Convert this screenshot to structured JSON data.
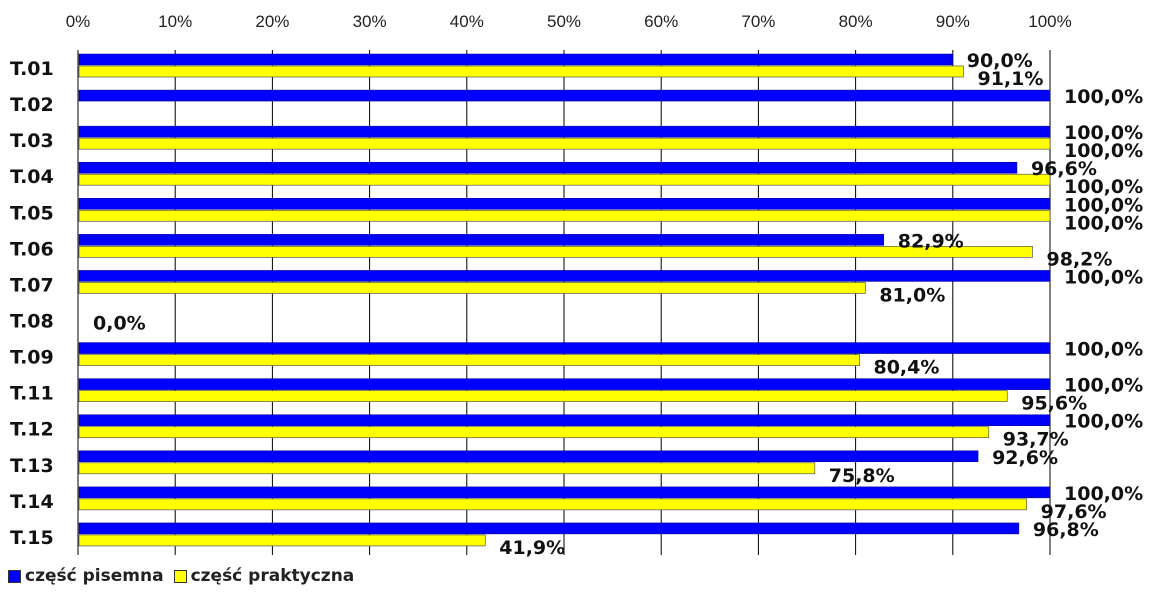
{
  "chart_data": {
    "type": "bar",
    "orientation": "horizontal",
    "categories": [
      "T.01",
      "T.02",
      "T.03",
      "T.04",
      "T.05",
      "T.06",
      "T.07",
      "T.08",
      "T.09",
      "T.11",
      "T.12",
      "T.13",
      "T.14",
      "T.15"
    ],
    "series": [
      {
        "name": "część pisemna",
        "color": "#0000ff",
        "values": [
          90.0,
          100.0,
          100.0,
          96.6,
          100.0,
          82.9,
          100.0,
          0.0,
          100.0,
          100.0,
          100.0,
          92.6,
          100.0,
          96.8
        ],
        "labels": [
          "90,0%",
          "100,0%",
          "100,0%",
          "96,6%",
          "100,0%",
          "82,9%",
          "100,0%",
          "0,0%",
          "100,0%",
          "100,0%",
          "100,0%",
          "92,6%",
          "100,0%",
          "96,8%"
        ]
      },
      {
        "name": "część praktyczna",
        "color": "#ffff00",
        "values": [
          91.1,
          null,
          100.0,
          100.0,
          100.0,
          98.2,
          81.0,
          null,
          80.4,
          95.6,
          93.7,
          75.8,
          97.6,
          41.9
        ],
        "labels": [
          "91,1%",
          "",
          "100,0%",
          "100,0%",
          "100,0%",
          "98,2%",
          "81,0%",
          "",
          "80,4%",
          "95,6%",
          "93,7%",
          "75,8%",
          "97,6%",
          "41,9%"
        ]
      }
    ],
    "xlim": [
      0,
      100
    ],
    "x_ticks": [
      "0%",
      "10%",
      "20%",
      "30%",
      "40%",
      "50%",
      "60%",
      "70%",
      "80%",
      "90%",
      "100%"
    ],
    "x_axis_position": "top",
    "grid": true,
    "legend_position": "bottom-left",
    "title": "",
    "xlabel": "",
    "ylabel": ""
  }
}
